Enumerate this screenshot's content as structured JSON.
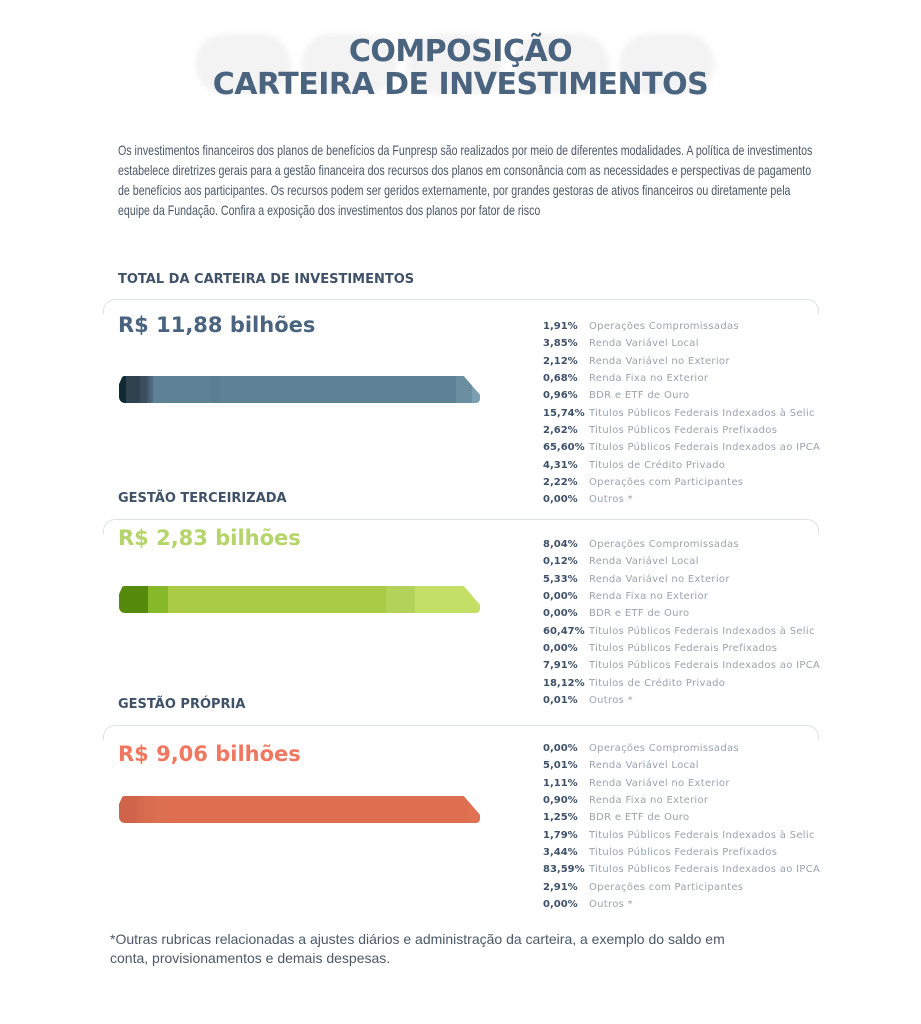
{
  "header": {
    "watermark": "COMPOSIÇÃO",
    "title_line1": "COMPOSIÇÃO",
    "title_line2": "CARTEIRA DE INVESTIMENTOS"
  },
  "intro": "Os investimentos financeiros dos planos de benefícios da Funpresp são realizados por meio de diferentes modalidades. A política de investimentos estabelece diretrizes gerais para a gestão financeira dos recursos dos planos em consonância com as necessidades e perspectivas de pagamento de benefícios aos participantes. Os recursos podem ser geridos externamente, por grandes gestoras de ativos financeiros ou diretamente pela equipe da Fundação. Confira a exposição dos investimentos dos planos por fator de risco",
  "sections": [
    {
      "heading": "TOTAL DA CARTEIRA DE INVESTIMENTOS",
      "amount": "R$ 11,88 bilhões",
      "color": "#4a6480",
      "bar_colors": [
        "#0f2a33",
        "#2f434f",
        "#3a4e5e",
        "#45596f",
        "#4f6a80",
        "#5e8196",
        "#5a7d92",
        "#5e8196",
        "#6a8da0",
        "#7a9fb0",
        "#7a9fb0"
      ],
      "items": [
        {
          "pct": "1,91%",
          "value": 1.91,
          "label": "Operações Compromissadas"
        },
        {
          "pct": "3,85%",
          "value": 3.85,
          "label": "Renda Variável Local"
        },
        {
          "pct": "2,12%",
          "value": 2.12,
          "label": "Renda Variável no Exterior"
        },
        {
          "pct": "0,68%",
          "value": 0.68,
          "label": "Renda Fixa no Exterior"
        },
        {
          "pct": "0,96%",
          "value": 0.96,
          "label": "BDR e ETF de Ouro"
        },
        {
          "pct": "15,74%",
          "value": 15.74,
          "label": "Titulos Públicos Federais Indexados à Selic"
        },
        {
          "pct": "2,62%",
          "value": 2.62,
          "label": "Titulos Públicos Federais Prefixados"
        },
        {
          "pct": "65,60%",
          "value": 65.6,
          "label": "Titulos Públicos Federais Indexados ao IPCA"
        },
        {
          "pct": "4,31%",
          "value": 4.31,
          "label": "Titulos de Crédito Privado"
        },
        {
          "pct": "2,22%",
          "value": 2.22,
          "label": "Operações com Participantes"
        },
        {
          "pct": "0,00%",
          "value": 0,
          "label": "Outros *"
        }
      ]
    },
    {
      "heading": "GESTÃO TERCEIRIZADA",
      "amount": "R$ 2,83 bilhões",
      "color": "#b5d46a",
      "bar_colors": [
        "#558a0c",
        "#6fa31a",
        "#86b829",
        "#9cc035",
        "#9cc035",
        "#a9cb45",
        "#b3d25a",
        "#b3d25a",
        "#c3df66",
        "#c3df66"
      ],
      "items": [
        {
          "pct": "8,04%",
          "value": 8.04,
          "label": "Operações Compromissadas"
        },
        {
          "pct": "0,12%",
          "value": 0.12,
          "label": "Renda Variável Local"
        },
        {
          "pct": "5,33%",
          "value": 5.33,
          "label": "Renda Variável no Exterior"
        },
        {
          "pct": "0,00%",
          "value": 0,
          "label": "Renda Fixa no Exterior"
        },
        {
          "pct": "0,00%",
          "value": 0,
          "label": "BDR e ETF de Ouro"
        },
        {
          "pct": "60,47%",
          "value": 60.47,
          "label": "Titulos Públicos Federais Indexados à Selic"
        },
        {
          "pct": "0,00%",
          "value": 0,
          "label": "Titulos Públicos Federais Prefixados"
        },
        {
          "pct": "7,91%",
          "value": 7.91,
          "label": "Titulos Públicos Federais Indexados ao IPCA"
        },
        {
          "pct": "18,12%",
          "value": 18.12,
          "label": "Titulos de Crédito Privado"
        },
        {
          "pct": "0,01%",
          "value": 0.01,
          "label": "Outros *"
        }
      ]
    },
    {
      "heading": "GESTÃO PRÓPRIA",
      "amount": "R$ 9,06 bilhões",
      "color": "#f07860",
      "bar_colors": [
        "#c95c44",
        "#d0644a",
        "#d4684d",
        "#d66a4e",
        "#d86c4f",
        "#da6d50",
        "#dc6f50",
        "#dd6f50",
        "#e07252",
        "#e07252"
      ],
      "items": [
        {
          "pct": "0,00%",
          "value": 0,
          "label": "Operações Compromissadas"
        },
        {
          "pct": "5,01%",
          "value": 5.01,
          "label": "Renda Variável Local"
        },
        {
          "pct": "1,11%",
          "value": 1.11,
          "label": "Renda Variável no Exterior"
        },
        {
          "pct": "0,90%",
          "value": 0.9,
          "label": "Renda Fixa no Exterior"
        },
        {
          "pct": "1,25%",
          "value": 1.25,
          "label": "BDR e ETF de Ouro"
        },
        {
          "pct": "1,79%",
          "value": 1.79,
          "label": "Titulos Públicos Federais Indexados à Selic"
        },
        {
          "pct": "3,44%",
          "value": 3.44,
          "label": "Titulos Públicos Federais Prefixados"
        },
        {
          "pct": "83,59%",
          "value": 83.59,
          "label": "Titulos Públicos Federais Indexados ao IPCA"
        },
        {
          "pct": "2,91%",
          "value": 2.91,
          "label": "Operações com Participantes"
        },
        {
          "pct": "0,00%",
          "value": 0,
          "label": "Outros *"
        }
      ]
    }
  ],
  "footnote": "*Outras rubricas relacionadas a ajustes diários e administração da carteira, a exemplo do saldo em conta, provisionamentos e demais despesas."
}
